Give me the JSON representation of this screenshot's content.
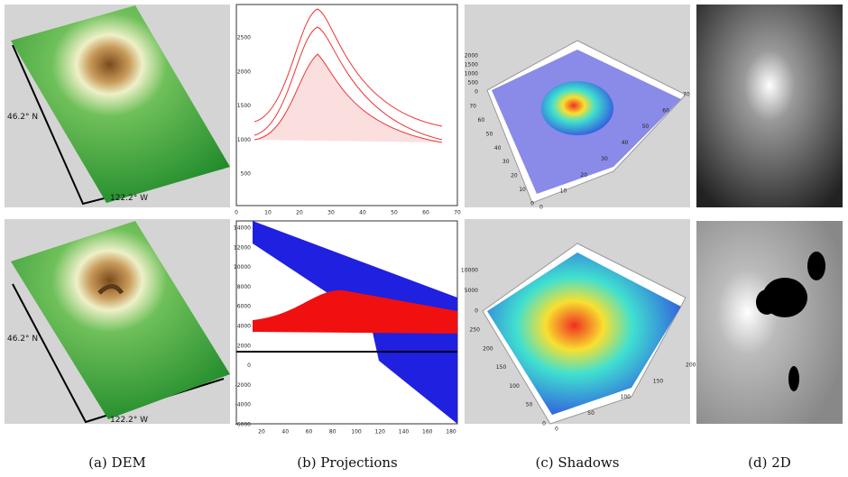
{
  "rows": [
    {
      "dem": {
        "lat": "46.2° N",
        "lon": "122.2° W"
      },
      "projections": {
        "yticks": [
          500,
          1000,
          1500,
          2000,
          2500
        ],
        "xticks": [
          0,
          10,
          20,
          30,
          40,
          50,
          60,
          70
        ]
      },
      "shadows": {
        "zticks": [
          0,
          500,
          1000,
          1500,
          2000
        ],
        "left_ticks": [
          0,
          10,
          20,
          30,
          40,
          50,
          60,
          70
        ],
        "right_ticks": [
          0,
          10,
          20,
          30,
          40,
          50,
          60,
          70
        ]
      }
    },
    {
      "dem": {
        "lat": "46.2° N",
        "lon": "122.2° W"
      },
      "projections": {
        "yticks": [
          -6000,
          -4000,
          -2000,
          0,
          2000,
          4000,
          6000,
          8000,
          10000,
          12000,
          14000
        ],
        "xticks": [
          20,
          40,
          60,
          80,
          100,
          120,
          140,
          160,
          180
        ]
      },
      "shadows": {
        "zticks": [
          0,
          5000,
          10000
        ],
        "left_ticks": [
          0,
          50,
          100,
          150,
          200,
          250
        ],
        "right_ticks": [
          0,
          50,
          100,
          150,
          200
        ]
      }
    }
  ],
  "captions": [
    "(a) DEM",
    "(b) Projections",
    "(c) Shadows",
    "(d) 2D"
  ]
}
